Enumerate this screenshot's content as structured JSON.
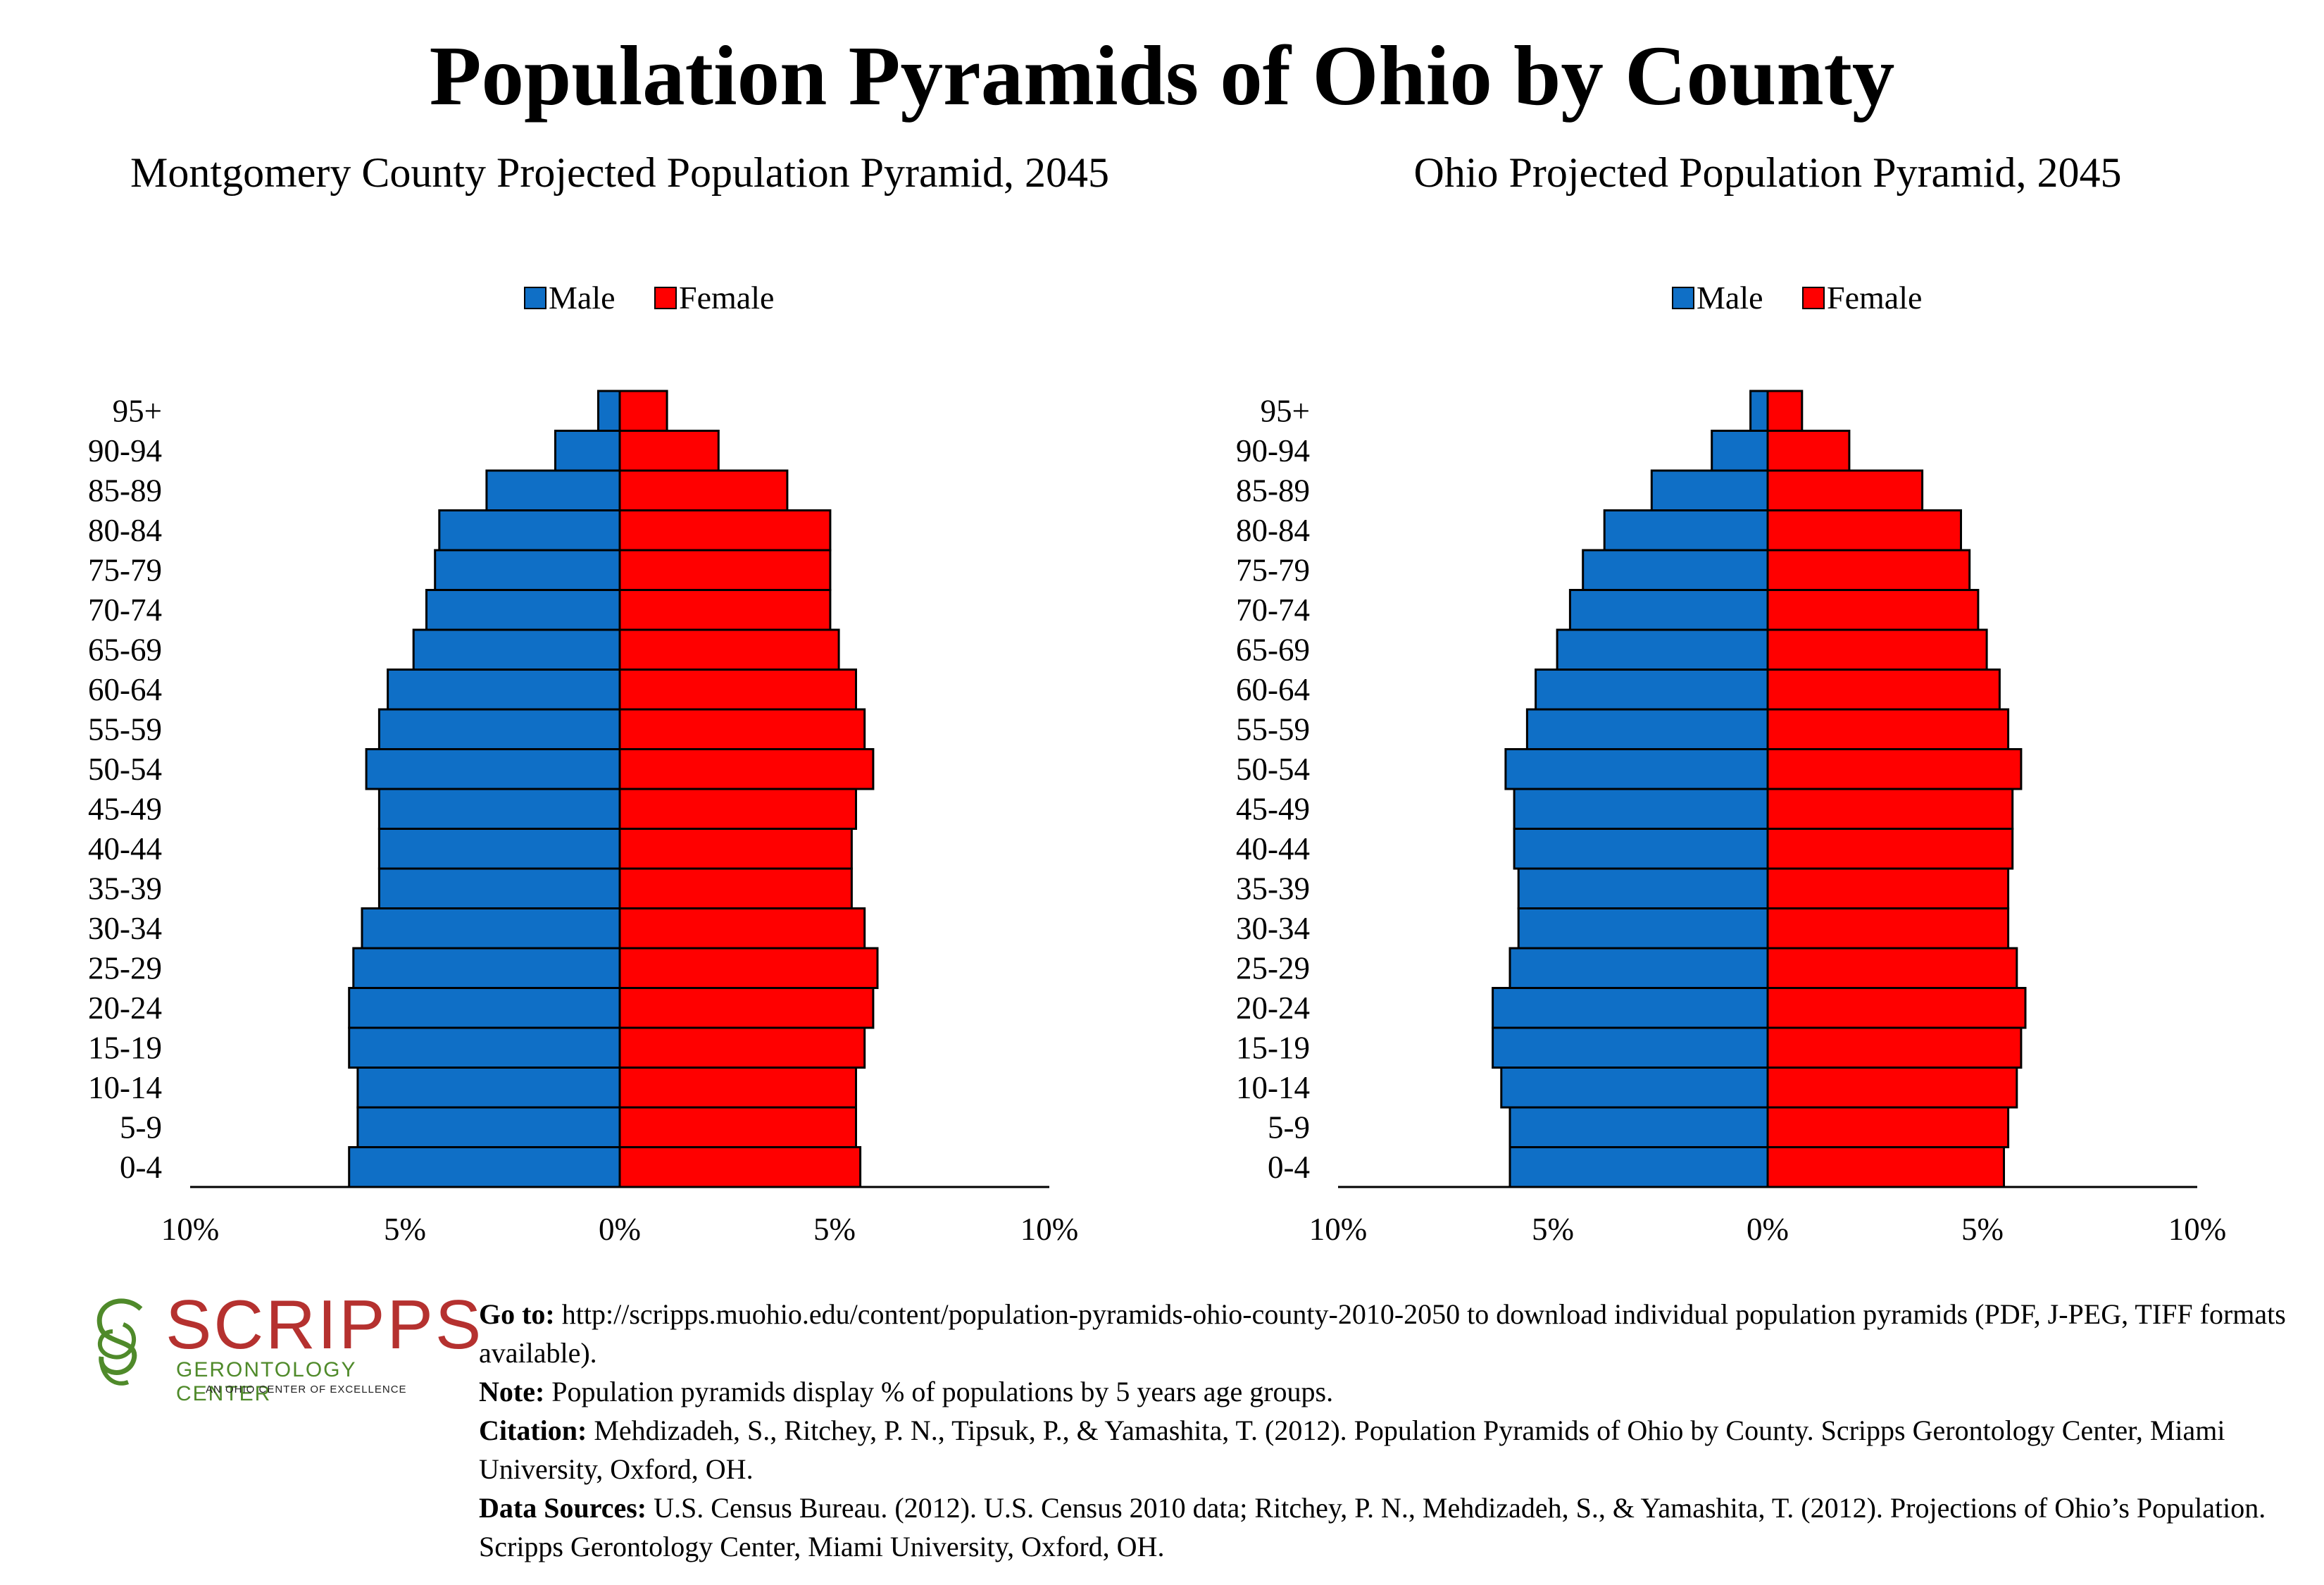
{
  "main_title": "Population Pyramids of Ohio by County",
  "colors": {
    "male": "#0f6fc6",
    "female": "#ff0000",
    "axis": "#000000"
  },
  "legend": {
    "male_label": "Male",
    "female_label": "Female"
  },
  "chart_data": [
    {
      "type": "bar",
      "title": "Montgomery County Projected Population Pyramid, 2045",
      "title_display": "Montgomery County Projected Population Pyramid, 2045",
      "categories": [
        "0-4",
        "5-9",
        "10-14",
        "15-19",
        "20-24",
        "25-29",
        "30-34",
        "35-39",
        "40-44",
        "45-49",
        "50-54",
        "55-59",
        "60-64",
        "65-69",
        "70-74",
        "75-79",
        "80-84",
        "85-89",
        "90-94",
        "95+"
      ],
      "series": [
        {
          "name": "Male",
          "values": [
            6.3,
            6.1,
            6.1,
            6.3,
            6.3,
            6.2,
            6.0,
            5.6,
            5.6,
            5.6,
            5.9,
            5.6,
            5.4,
            4.8,
            4.5,
            4.3,
            4.2,
            3.1,
            1.5,
            0.5
          ]
        },
        {
          "name": "Female",
          "values": [
            5.6,
            5.5,
            5.5,
            5.7,
            5.9,
            6.0,
            5.7,
            5.4,
            5.4,
            5.5,
            5.9,
            5.7,
            5.5,
            5.1,
            4.9,
            4.9,
            4.9,
            3.9,
            2.3,
            1.1
          ]
        }
      ],
      "xlim": [
        -10,
        10
      ],
      "xticks": [
        -10,
        -5,
        0,
        5,
        10
      ],
      "xtick_labels": [
        "10%",
        "5%",
        "0%",
        "5%",
        "10%"
      ],
      "legend_position": "top-center",
      "grid": false
    },
    {
      "type": "bar",
      "title": "Ohio Projected Population Pyramid, 2045",
      "title_display": "Ohio Projected Population Pyramid, 2045",
      "categories": [
        "0-4",
        "5-9",
        "10-14",
        "15-19",
        "20-24",
        "25-29",
        "30-34",
        "35-39",
        "40-44",
        "45-49",
        "50-54",
        "55-59",
        "60-64",
        "65-69",
        "70-74",
        "75-79",
        "80-84",
        "85-89",
        "90-94",
        "95+"
      ],
      "series": [
        {
          "name": "Male",
          "values": [
            6.0,
            6.0,
            6.2,
            6.4,
            6.4,
            6.0,
            5.8,
            5.8,
            5.9,
            5.9,
            6.1,
            5.6,
            5.4,
            4.9,
            4.6,
            4.3,
            3.8,
            2.7,
            1.3,
            0.4
          ]
        },
        {
          "name": "Female",
          "values": [
            5.5,
            5.6,
            5.8,
            5.9,
            6.0,
            5.8,
            5.6,
            5.6,
            5.7,
            5.7,
            5.9,
            5.6,
            5.4,
            5.1,
            4.9,
            4.7,
            4.5,
            3.6,
            1.9,
            0.8
          ]
        }
      ],
      "xlim": [
        -10,
        10
      ],
      "xticks": [
        -10,
        -5,
        0,
        5,
        10
      ],
      "xtick_labels": [
        "10%",
        "5%",
        "0%",
        "5%",
        "10%"
      ],
      "legend_position": "top-center",
      "grid": false
    }
  ],
  "logo": {
    "name": "SCRIPPS",
    "subtitle": "GERONTOLOGY CENTER",
    "tagline": "AN OHIO CENTER OF EXCELLENCE"
  },
  "notes": [
    {
      "label": "Go to:",
      "text": " http://scripps.muohio.edu/content/population-pyramids-ohio-county-2010-2050 to download individual population pyramids (PDF, J-PEG, TIFF formats available)."
    },
    {
      "label": "Note:",
      "text": " Population pyramids display % of populations by 5 years age groups."
    },
    {
      "label": "Citation:",
      "text": " Mehdizadeh, S., Ritchey, P. N., Tipsuk, P., & Yamashita, T. (2012). Population Pyramids of Ohio by County. Scripps Gerontology Center, Miami University, Oxford, OH."
    },
    {
      "label": "Data Sources:",
      "text": " U.S. Census Bureau. (2012). U.S. Census 2010 data; Ritchey, P. N., Mehdizadeh, S., & Yamashita, T. (2012). Projections of Ohio’s Population. Scripps Gerontology Center, Miami University, Oxford, OH."
    }
  ]
}
